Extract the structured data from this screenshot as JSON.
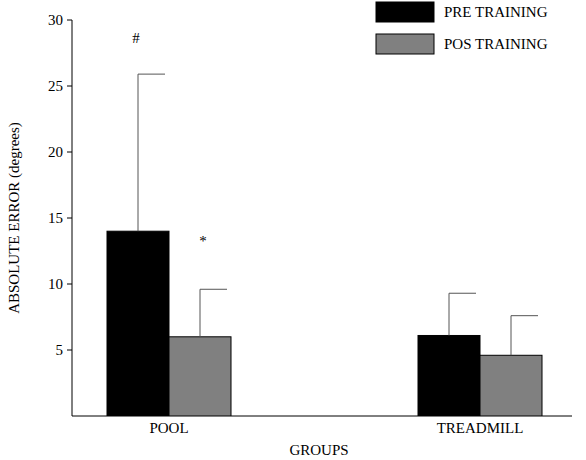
{
  "chart_data": {
    "type": "bar",
    "y_label": "ABSOLUTE ERROR (degrees)",
    "x_label": "GROUPS",
    "categories": [
      "POOL",
      "TREADMILL"
    ],
    "series": [
      {
        "name": "PRE TRAINING",
        "color": "#000000",
        "values": [
          14.0,
          6.1
        ],
        "errors": [
          11.9,
          3.2
        ]
      },
      {
        "name": "POS TRAINING",
        "color": "#808080",
        "values": [
          6.0,
          4.6
        ],
        "errors": [
          3.6,
          3.0
        ]
      }
    ],
    "ylim": [
      0,
      30
    ],
    "yticks": [
      5,
      10,
      15,
      20,
      25,
      30
    ],
    "legend": "top-right",
    "annotations": [
      {
        "text": "#",
        "series": 0,
        "category": 0,
        "y": 28.7
      },
      {
        "text": "*",
        "series": 1,
        "category": 0,
        "y": 13.3
      }
    ]
  }
}
